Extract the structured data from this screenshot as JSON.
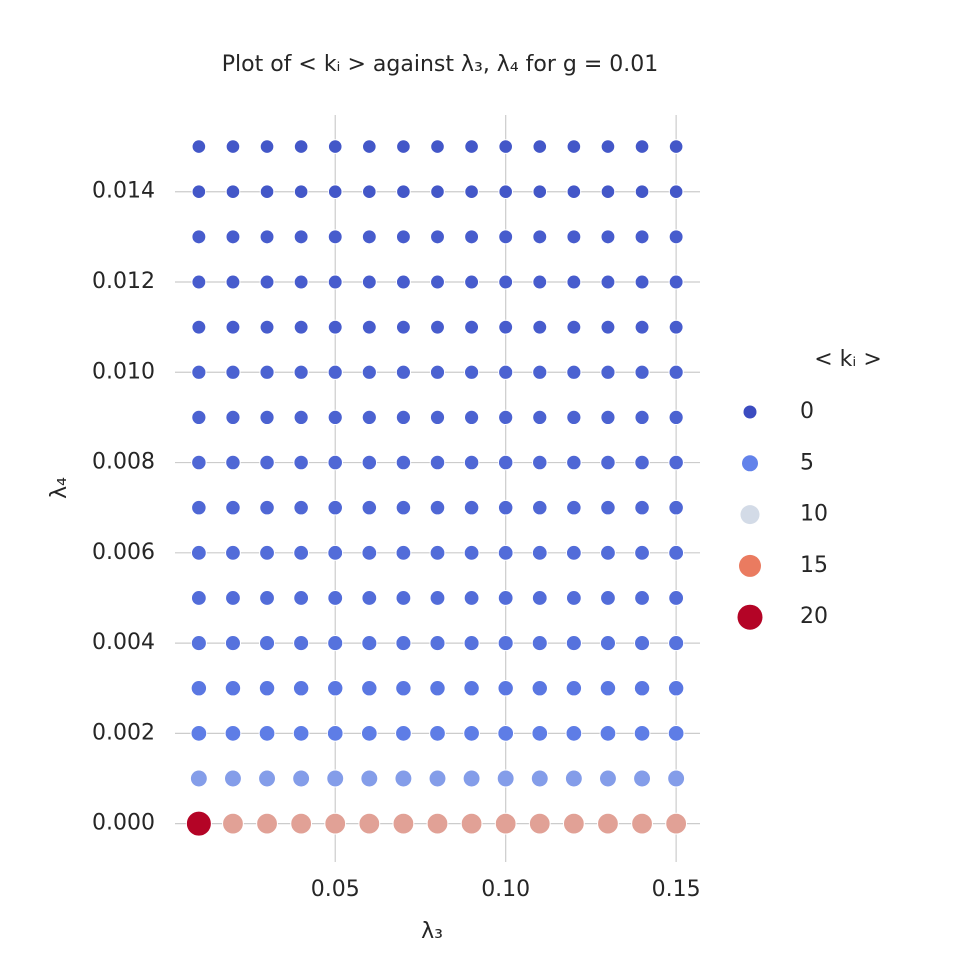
{
  "chart_data": {
    "type": "scatter",
    "title": "Plot of < kᵢ > against λ₃, λ₄ for g = 0.01",
    "x_label": "λ₃",
    "y_label": "λ₄",
    "x": [
      0.01,
      0.02,
      0.03,
      0.04,
      0.05,
      0.06,
      0.07,
      0.08,
      0.09,
      0.1,
      0.11,
      0.12,
      0.13,
      0.14,
      0.15
    ],
    "y": [
      0,
      0.001,
      0.002,
      0.003,
      0.004,
      0.005,
      0.006,
      0.007,
      0.008,
      0.009,
      0.01,
      0.011,
      0.012,
      0.013,
      0.014,
      0.015
    ],
    "values": [
      [
        20,
        13,
        13,
        13,
        13,
        13,
        13,
        13,
        13,
        13,
        13,
        13,
        13,
        13,
        13
      ],
      [
        6.5,
        6.5,
        6.5,
        6.5,
        6.5,
        6.5,
        6.5,
        6.5,
        6.5,
        6.5,
        6.5,
        6.5,
        6.5,
        6.5,
        6.5
      ],
      [
        4.5,
        4.5,
        4.5,
        4.5,
        4.5,
        4.5,
        4.5,
        4.5,
        4.5,
        4.5,
        4.5,
        4.5,
        4.5,
        4.5,
        4.5
      ],
      [
        4,
        4,
        4,
        4,
        4,
        4,
        4,
        4,
        4,
        4,
        4,
        4,
        4,
        4,
        4
      ],
      [
        3.5,
        3.5,
        3.5,
        3.5,
        3.5,
        3.5,
        3.5,
        3.5,
        3.5,
        3.5,
        3.5,
        3.5,
        3.5,
        3.5,
        3.5
      ],
      [
        3,
        3,
        3,
        3,
        3,
        3,
        3,
        3,
        3,
        3,
        3,
        3,
        3,
        3,
        3
      ],
      [
        3,
        3,
        3,
        3,
        3,
        3,
        3,
        3,
        3,
        3,
        3,
        3,
        3,
        3,
        3
      ],
      [
        2.5,
        2.5,
        2.5,
        2.5,
        2.5,
        2.5,
        2.5,
        2.5,
        2.5,
        2.5,
        2.5,
        2.5,
        2.5,
        2.5,
        2.5
      ],
      [
        2.5,
        2.5,
        2.5,
        2.5,
        2.5,
        2.5,
        2.5,
        2.5,
        2.5,
        2.5,
        2.5,
        2.5,
        2.5,
        2.5,
        2.5
      ],
      [
        2,
        2,
        2,
        2,
        2,
        2,
        2,
        2,
        2,
        2,
        2,
        2,
        2,
        2,
        2
      ],
      [
        2,
        2,
        2,
        2,
        2,
        2,
        2,
        2,
        2,
        2,
        2,
        2,
        2,
        2,
        2
      ],
      [
        1.5,
        1.5,
        1.5,
        1.5,
        1.5,
        1.5,
        1.5,
        1.5,
        1.5,
        1.5,
        1.5,
        1.5,
        1.5,
        1.5,
        1.5
      ],
      [
        1.5,
        1.5,
        1.5,
        1.5,
        1.5,
        1.5,
        1.5,
        1.5,
        1.5,
        1.5,
        1.5,
        1.5,
        1.5,
        1.5,
        1.5
      ],
      [
        1.5,
        1.5,
        1.5,
        1.5,
        1.5,
        1.5,
        1.5,
        1.5,
        1.5,
        1.5,
        1.5,
        1.5,
        1.5,
        1.5,
        1.5
      ],
      [
        1,
        1,
        1,
        1,
        1,
        1,
        1,
        1,
        1,
        1,
        1,
        1,
        1,
        1,
        1
      ],
      [
        1,
        1,
        1,
        1,
        1,
        1,
        1,
        1,
        1,
        1,
        1,
        1,
        1,
        1,
        1
      ]
    ],
    "xlim": [
      0.003,
      0.157
    ],
    "ylim": [
      -0.00085,
      0.0157
    ],
    "xticks": [
      0.05,
      {
        "value": 0.1,
        "label": "0.10"
      },
      0.15
    ],
    "yticks": [
      {
        "value": 0,
        "label": "0.000"
      },
      0.002,
      0.004,
      0.006,
      0.008,
      {
        "value": 0.01,
        "label": "0.010"
      },
      0.012,
      0.014
    ],
    "grid": true,
    "legend": {
      "title": "< kᵢ >",
      "entries": [
        0,
        5,
        10,
        15,
        20
      ],
      "colors": [
        "#3b4cc0",
        "#6282ea",
        "#d3dbe7",
        "#ea7b60",
        "#b40426"
      ]
    }
  }
}
